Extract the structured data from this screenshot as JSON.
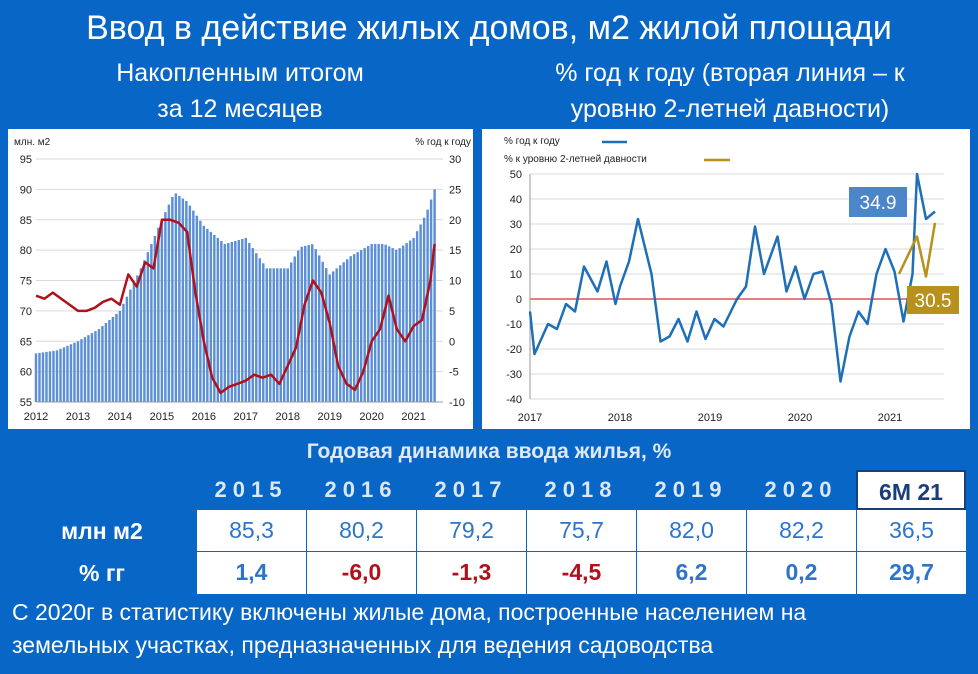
{
  "title": "Ввод в действие жилых домов, м2 жилой площади",
  "left_subtitle_1": "Накопленным итогом",
  "left_subtitle_2": "за 12 месяцев",
  "right_subtitle_1": "% год к году (вторая линия – к",
  "right_subtitle_2": "уровню 2-летней давности)",
  "colors": {
    "background": "#0866c6",
    "bars": "#5b8fd6",
    "red_line": "#b0121b",
    "blue_line": "#1f6fb6",
    "gold_line": "#b8901c",
    "negative": "#b0121b",
    "positive": "#2e74c8"
  },
  "chart_data": [
    {
      "type": "bar",
      "left_axis_label": "млн. м2",
      "right_axis_label": "% год к году",
      "ylim_left": [
        55,
        95
      ],
      "yticks_left": [
        55,
        60,
        65,
        70,
        75,
        80,
        85,
        90,
        95
      ],
      "ylim_right": [
        -10,
        30
      ],
      "yticks_right": [
        -10,
        -5,
        0,
        5,
        10,
        15,
        20,
        25,
        30
      ],
      "xlim": [
        2012,
        2021.7
      ],
      "x_tick_labels": [
        "2012",
        "2013",
        "2014",
        "2015",
        "2016",
        "2017",
        "2018",
        "2019",
        "2020",
        "2021"
      ],
      "grid": true,
      "series": [
        {
          "kind": "bar",
          "x": [
            2012.0,
            2012.5,
            2013.0,
            2013.5,
            2014.0,
            2014.5,
            2015.0,
            2015.3,
            2015.6,
            2016.0,
            2016.5,
            2017.0,
            2017.5,
            2018.0,
            2018.3,
            2018.6,
            2019.0,
            2019.5,
            2020.0,
            2020.3,
            2020.6,
            2021.0,
            2021.3,
            2021.5
          ],
          "y": [
            63,
            63.5,
            65,
            67,
            70,
            77,
            85,
            89.5,
            88,
            84,
            81,
            82,
            77,
            77,
            80.5,
            81,
            76,
            79,
            81,
            81,
            80,
            82,
            86,
            90
          ]
        },
        {
          "kind": "line",
          "axis": "right",
          "x": [
            2012.0,
            2012.2,
            2012.4,
            2012.6,
            2012.8,
            2013.0,
            2013.2,
            2013.4,
            2013.6,
            2013.8,
            2014.0,
            2014.2,
            2014.4,
            2014.6,
            2014.8,
            2015.0,
            2015.2,
            2015.4,
            2015.6,
            2015.8,
            2016.0,
            2016.2,
            2016.4,
            2016.6,
            2016.8,
            2017.0,
            2017.2,
            2017.4,
            2017.6,
            2017.8,
            2018.0,
            2018.2,
            2018.4,
            2018.6,
            2018.8,
            2019.0,
            2019.2,
            2019.4,
            2019.6,
            2019.8,
            2020.0,
            2020.2,
            2020.4,
            2020.6,
            2020.8,
            2021.0,
            2021.2,
            2021.4,
            2021.5
          ],
          "y": [
            7.5,
            7,
            8,
            7,
            6,
            5,
            5,
            5.5,
            6.5,
            7,
            6,
            11,
            9,
            13,
            12,
            20,
            20,
            19.5,
            18,
            8,
            0,
            -6,
            -8.5,
            -7.5,
            -7,
            -6.5,
            -5.5,
            -6,
            -5.5,
            -7,
            -4,
            -1,
            6,
            10,
            8,
            3,
            -4,
            -7,
            -8,
            -5,
            0,
            2,
            7.5,
            2,
            0,
            2.5,
            3.5,
            10,
            16
          ]
        }
      ]
    },
    {
      "type": "line",
      "legend": [
        "% год к году",
        "% к уровню 2-летней давности"
      ],
      "legend_position": "top-left",
      "ylim": [
        -40,
        50
      ],
      "yticks": [
        -40,
        -30,
        -20,
        -10,
        0,
        10,
        20,
        30,
        40,
        50
      ],
      "xlim": [
        2017,
        2021.6
      ],
      "x_tick_labels": [
        "2017",
        "2018",
        "2019",
        "2020",
        "2021"
      ],
      "grid": true,
      "callouts": {
        "blue": "34.9",
        "gold": "30.5"
      },
      "series": [
        {
          "name": "% год к году",
          "x": [
            2017.0,
            2017.05,
            2017.2,
            2017.3,
            2017.4,
            2017.5,
            2017.6,
            2017.75,
            2017.85,
            2017.95,
            2018.0,
            2018.1,
            2018.2,
            2018.35,
            2018.45,
            2018.55,
            2018.65,
            2018.75,
            2018.85,
            2018.95,
            2019.05,
            2019.15,
            2019.3,
            2019.4,
            2019.5,
            2019.6,
            2019.75,
            2019.85,
            2019.95,
            2020.05,
            2020.15,
            2020.25,
            2020.35,
            2020.45,
            2020.55,
            2020.65,
            2020.75,
            2020.85,
            2020.95,
            2021.05,
            2021.15,
            2021.25,
            2021.3,
            2021.4,
            2021.5
          ],
          "y": [
            -5,
            -22,
            -10,
            -12,
            -2,
            -5,
            13,
            3,
            15,
            -2,
            5,
            15,
            32,
            10,
            -17,
            -15,
            -8,
            -17,
            -5,
            -16,
            -8,
            -11,
            0,
            5,
            29,
            10,
            25,
            3,
            13,
            0,
            10,
            11,
            -2,
            -33,
            -15,
            -5,
            -10,
            10,
            20,
            11,
            -9,
            10,
            50,
            32,
            35
          ]
        },
        {
          "name": "% к уровню 2-летней давности",
          "x": [
            2021.1,
            2021.3,
            2021.4,
            2021.5
          ],
          "y": [
            10,
            25,
            9,
            30.5
          ]
        }
      ]
    }
  ],
  "table": {
    "header": "Годовая динамика ввода жилья, %",
    "years": [
      "2015",
      "2016",
      "2017",
      "2018",
      "2019",
      "2020",
      "6М 21"
    ],
    "row1_label": "млн м2",
    "row1": [
      "85,3",
      "80,2",
      "79,2",
      "75,7",
      "82,0",
      "82,2",
      "36,5"
    ],
    "row2_label": "% гг",
    "row2": [
      "1,4",
      "-6,0",
      "-1,3",
      "-4,5",
      "6,2",
      "0,2",
      "29,7"
    ]
  },
  "footnote_1": "С 2020г в статистику включены жилые дома, построенные населением на",
  "footnote_2": "земельных участках, предназначенных для ведения садоводства"
}
